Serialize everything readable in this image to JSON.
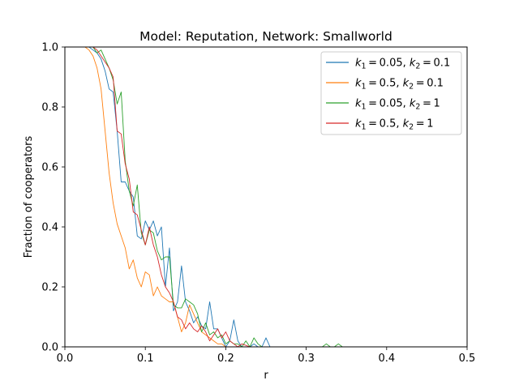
{
  "chart_data": {
    "type": "line",
    "title": "Model: Reputation, Network: Smallworld",
    "xlabel": "r",
    "ylabel": "Fraction of cooperators",
    "xlim": [
      0.0,
      0.5
    ],
    "ylim": [
      0.0,
      1.0
    ],
    "xticks": [
      "0.0",
      "0.1",
      "0.2",
      "0.3",
      "0.4",
      "0.5"
    ],
    "yticks": [
      "0.0",
      "0.2",
      "0.4",
      "0.6",
      "0.8",
      "1.0"
    ],
    "grid": false,
    "legend_position": "top-right",
    "series": [
      {
        "legend": {
          "k1": "0.05",
          "k2": "0.1"
        },
        "color": "#1f77b4",
        "x": [
          0.02,
          0.025,
          0.03,
          0.035,
          0.04,
          0.045,
          0.05,
          0.055,
          0.06,
          0.065,
          0.07,
          0.075,
          0.08,
          0.085,
          0.09,
          0.095,
          0.1,
          0.105,
          0.11,
          0.115,
          0.12,
          0.125,
          0.13,
          0.135,
          0.14,
          0.145,
          0.15,
          0.155,
          0.16,
          0.165,
          0.17,
          0.175,
          0.18,
          0.185,
          0.19,
          0.195,
          0.2,
          0.205,
          0.21,
          0.215,
          0.22,
          0.225,
          0.23,
          0.235,
          0.24,
          0.245,
          0.25,
          0.255,
          0.26,
          0.265,
          0.27,
          0.3,
          0.35,
          0.4,
          0.45,
          0.5
        ],
        "y": [
          1.0,
          1.0,
          1.0,
          0.99,
          0.98,
          0.96,
          0.92,
          0.86,
          0.85,
          0.72,
          0.55,
          0.55,
          0.52,
          0.5,
          0.37,
          0.36,
          0.42,
          0.39,
          0.42,
          0.37,
          0.4,
          0.2,
          0.33,
          0.12,
          0.15,
          0.27,
          0.15,
          0.12,
          0.08,
          0.1,
          0.07,
          0.06,
          0.15,
          0.06,
          0.06,
          0.03,
          0.0,
          0.02,
          0.09,
          0.02,
          0.0,
          0.0,
          0.0,
          0.01,
          0.0,
          0.0,
          0.03,
          0.0,
          0.0,
          0.0,
          0.0,
          0.0,
          0.0,
          0.0,
          0.0,
          0.0
        ]
      },
      {
        "legend": {
          "k1": "0.5",
          "k2": "0.1"
        },
        "color": "#ff7f0e",
        "x": [
          0.02,
          0.025,
          0.03,
          0.035,
          0.04,
          0.045,
          0.05,
          0.055,
          0.06,
          0.065,
          0.07,
          0.075,
          0.08,
          0.085,
          0.09,
          0.095,
          0.1,
          0.105,
          0.11,
          0.115,
          0.12,
          0.125,
          0.13,
          0.135,
          0.14,
          0.145,
          0.15,
          0.155,
          0.16,
          0.165,
          0.17,
          0.175,
          0.18,
          0.185,
          0.19,
          0.195,
          0.2,
          0.205,
          0.21,
          0.22,
          0.25,
          0.3,
          0.4,
          0.5
        ],
        "y": [
          1.0,
          1.0,
          0.99,
          0.97,
          0.93,
          0.86,
          0.72,
          0.58,
          0.48,
          0.41,
          0.37,
          0.33,
          0.26,
          0.29,
          0.23,
          0.2,
          0.25,
          0.24,
          0.17,
          0.2,
          0.17,
          0.16,
          0.15,
          0.15,
          0.1,
          0.05,
          0.08,
          0.14,
          0.11,
          0.08,
          0.05,
          0.04,
          0.03,
          0.02,
          0.01,
          0.01,
          0.0,
          0.0,
          0.0,
          0.0,
          0.0,
          0.0,
          0.0,
          0.0
        ]
      },
      {
        "legend": {
          "k1": "0.05",
          "k2": "1"
        },
        "color": "#2ca02c",
        "x": [
          0.02,
          0.025,
          0.03,
          0.035,
          0.04,
          0.045,
          0.05,
          0.055,
          0.06,
          0.065,
          0.07,
          0.075,
          0.08,
          0.085,
          0.09,
          0.095,
          0.1,
          0.105,
          0.11,
          0.115,
          0.12,
          0.125,
          0.13,
          0.135,
          0.14,
          0.145,
          0.15,
          0.155,
          0.16,
          0.165,
          0.17,
          0.175,
          0.18,
          0.185,
          0.19,
          0.195,
          0.2,
          0.205,
          0.21,
          0.215,
          0.22,
          0.225,
          0.23,
          0.235,
          0.24,
          0.245,
          0.25,
          0.3,
          0.32,
          0.325,
          0.33,
          0.335,
          0.34,
          0.345,
          0.35,
          0.4,
          0.5
        ],
        "y": [
          1.0,
          1.0,
          1.0,
          1.0,
          0.98,
          0.99,
          0.96,
          0.93,
          0.89,
          0.81,
          0.85,
          0.62,
          0.52,
          0.47,
          0.54,
          0.38,
          0.34,
          0.39,
          0.38,
          0.32,
          0.29,
          0.3,
          0.3,
          0.14,
          0.13,
          0.13,
          0.16,
          0.15,
          0.14,
          0.11,
          0.05,
          0.08,
          0.04,
          0.05,
          0.03,
          0.04,
          0.01,
          0.02,
          0.01,
          0.01,
          0.0,
          0.02,
          0.0,
          0.03,
          0.01,
          0.0,
          0.0,
          0.0,
          0.0,
          0.01,
          0.0,
          0.0,
          0.01,
          0.0,
          0.0,
          0.0,
          0.0
        ]
      },
      {
        "legend": {
          "k1": "0.5",
          "k2": "1"
        },
        "color": "#d62728",
        "x": [
          0.02,
          0.025,
          0.03,
          0.035,
          0.04,
          0.045,
          0.05,
          0.055,
          0.06,
          0.065,
          0.07,
          0.075,
          0.08,
          0.085,
          0.09,
          0.095,
          0.1,
          0.105,
          0.11,
          0.115,
          0.12,
          0.125,
          0.13,
          0.135,
          0.14,
          0.145,
          0.15,
          0.155,
          0.16,
          0.165,
          0.17,
          0.175,
          0.18,
          0.185,
          0.19,
          0.195,
          0.2,
          0.205,
          0.21,
          0.215,
          0.22,
          0.23,
          0.25,
          0.3,
          0.4,
          0.5
        ],
        "y": [
          1.0,
          1.0,
          1.0,
          1.0,
          0.99,
          0.97,
          0.95,
          0.93,
          0.9,
          0.72,
          0.71,
          0.61,
          0.56,
          0.45,
          0.44,
          0.39,
          0.34,
          0.4,
          0.34,
          0.3,
          0.24,
          0.2,
          0.18,
          0.15,
          0.1,
          0.09,
          0.06,
          0.08,
          0.06,
          0.05,
          0.07,
          0.05,
          0.02,
          0.04,
          0.06,
          0.03,
          0.05,
          0.02,
          0.01,
          0.0,
          0.01,
          0.0,
          0.0,
          0.0,
          0.0,
          0.0
        ]
      }
    ]
  }
}
